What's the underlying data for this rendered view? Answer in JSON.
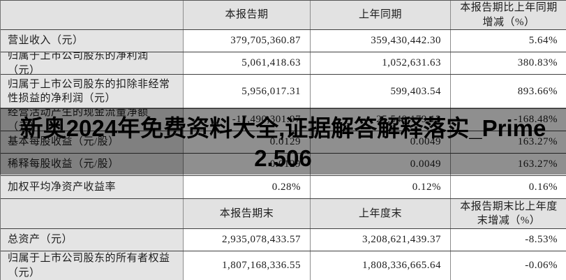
{
  "banner": {
    "line1": "新奥2024年免费资料大全,证据解答解释落实_Prime",
    "line2": "2.506",
    "text_color": "#000000"
  },
  "colors": {
    "header_bg": "#e2e2e2",
    "label_col_bg": "#e4e4e4",
    "value_cell_bg": "#ffffff",
    "row_border": "#3f3f3f",
    "col_border": "#8c8c8c",
    "overlay": "rgba(0,0,0,0.44)"
  },
  "table": {
    "section1": {
      "headers": [
        "",
        "本报告期",
        "上年同期",
        "本报告期比上年同期增减（%）"
      ],
      "rows": [
        {
          "label": "营业收入（元）",
          "current": "379,705,360.87",
          "prior": "359,430,442.30",
          "change": "5.64%"
        },
        {
          "label": "归属于上市公司股东的净利润（元）",
          "current": "5,061,418.63",
          "prior": "1,052,631.63",
          "change": "380.83%"
        },
        {
          "label": "归属于上市公司股东的扣除非经常性损益的净利润（元）",
          "current": "5,956,017.31",
          "prior": "599,403.54",
          "change": "893.66%"
        },
        {
          "label": "经营活动产生的现金流量净额（元）",
          "current": "-17,490,301.97",
          "prior": "25,540,179.13",
          "change": "-168.48%"
        },
        {
          "label": "基本每股收益（元/股）",
          "current": "0.0129",
          "prior": "0.0049",
          "change": "163.27%"
        },
        {
          "label": "稀释每股收益（元/股）",
          "current": "0.0129",
          "prior": "0.0049",
          "change": "163.27%"
        },
        {
          "label": "加权平均净资产收益率",
          "current": "0.28%",
          "prior": "0.12%",
          "change": "0.16%"
        }
      ]
    },
    "section2": {
      "headers": [
        "",
        "本报告期末",
        "上年度末",
        "本报告期末比上年度末增减（%）"
      ],
      "rows": [
        {
          "label": "总资产（元）",
          "current": "2,935,078,433.57",
          "prior": "3,208,621,439.37",
          "change": "-8.53%"
        },
        {
          "label": "归属于上市公司股东的所有者权益（元）",
          "current": "1,807,168,336.55",
          "prior": "1,808,336,665.64",
          "change": "-0.06%"
        }
      ]
    }
  }
}
